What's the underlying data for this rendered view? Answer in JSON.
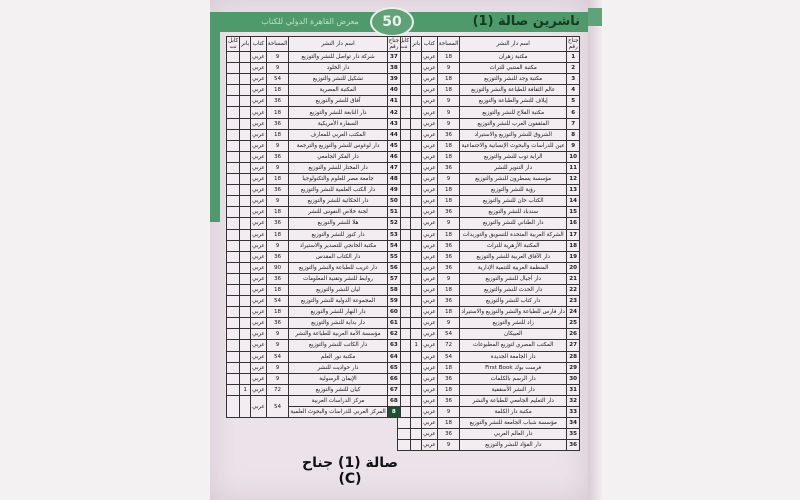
{
  "header": {
    "title": "ناشرين صالة (1)",
    "logo_text": "معرض القاهرة الدولي للكتاب",
    "logo_number": "50"
  },
  "columns": [
    "جناح رقم",
    "اسم دار النشر",
    "المساحة",
    "كتاب",
    "بانر",
    "كابل نت"
  ],
  "right_table": [
    [
      "1",
      "مكتبة زهران",
      "18",
      "عربي",
      "",
      ""
    ],
    [
      "2",
      "مكتبة المتنبي للتراث",
      "9",
      "عربي",
      "",
      ""
    ],
    [
      "3",
      "مكتبة وجد للنشر والتوزيع",
      "18",
      "عربي",
      "",
      ""
    ],
    [
      "4",
      "عالم الثقافة للطباعة والنشر والتوزيع",
      "18",
      "عربي",
      "",
      ""
    ],
    [
      "5",
      "إيلاف للنشر والطباعة والتوزيع",
      "9",
      "عربي",
      "",
      ""
    ],
    [
      "6",
      "مكتبة الفلاح للنشر والتوزيع",
      "9",
      "عربي",
      "",
      ""
    ],
    [
      "7",
      "المثقفون العرب للنشر والتوزيع",
      "9",
      "عربي",
      "",
      ""
    ],
    [
      "8",
      "الشروق للنشر والتوزيع والاستيراد",
      "36",
      "عربي",
      "",
      ""
    ],
    [
      "9",
      "عين للدراسات والبحوث الإنسانية والاجتماعية",
      "18",
      "عربي",
      "",
      ""
    ],
    [
      "10",
      "الراية توب للنشر والتوزيع",
      "18",
      "عربي",
      "",
      ""
    ],
    [
      "11",
      "دار التنوير للنشر",
      "36",
      "عربي",
      "",
      ""
    ],
    [
      "12",
      "مؤسسة يسطرون للنشر والتوزيع",
      "9",
      "عربي",
      "",
      ""
    ],
    [
      "13",
      "رؤية للنشر والتوزيع",
      "18",
      "عربي",
      "",
      ""
    ],
    [
      "14",
      "الكتاب خان للنشر والتوزيع",
      "18",
      "عربي",
      "",
      ""
    ],
    [
      "15",
      "سندباد للنشر والتوزيع",
      "36",
      "عربي",
      "",
      ""
    ],
    [
      "16",
      "دار الطناني للنشر والتوزيع",
      "9",
      "عربي",
      "",
      ""
    ],
    [
      "17",
      "الشركة العربية المتحدة للتسويق والتوريدات",
      "18",
      "عربي",
      "",
      ""
    ],
    [
      "18",
      "المكتبة الأزهرية للتراث",
      "36",
      "عربي",
      "",
      ""
    ],
    [
      "19",
      "دار الآفاق العربية للنشر والتوزيع",
      "36",
      "عربي",
      "",
      ""
    ],
    [
      "20",
      "المنظمة العربية للتنمية الإدارية",
      "36",
      "عربي",
      "",
      ""
    ],
    [
      "21",
      "دار أجيال للنشر والتوزيع",
      "9",
      "عربي",
      "",
      ""
    ],
    [
      "22",
      "دار الحدث للنشر والتوزيع",
      "18",
      "عربي",
      "",
      ""
    ],
    [
      "23",
      "دار كتاب للنشر والتوزيع",
      "36",
      "عربي",
      "",
      ""
    ],
    [
      "24",
      "دار فارس للطباعة والنشر والتوزيع والاستيراد",
      "18",
      "عربي",
      "",
      ""
    ],
    [
      "25",
      "زاد للنشر والتوزيع",
      "9",
      "عربي",
      "",
      ""
    ],
    [
      "26",
      "العبيكان",
      "54",
      "عربي",
      "",
      ""
    ],
    [
      "27",
      "المكتب المصري لتوزيع المطبوعات",
      "72",
      "عربي",
      "1",
      ""
    ],
    [
      "28",
      "دار الجامعة الجديدة",
      "54",
      "عربي",
      "",
      ""
    ],
    [
      "29",
      "فرست بوك First Book",
      "18",
      "عربي",
      "",
      ""
    ],
    [
      "30",
      "دار الرسم بالكلمات",
      "36",
      "عربي",
      "",
      ""
    ],
    [
      "31",
      "دار النشر الأسقفية",
      "18",
      "عربي",
      "",
      ""
    ],
    [
      "32",
      "دار التعليم الجامعي للطباعة والنشر",
      "36",
      "عربي",
      "",
      ""
    ],
    [
      "33",
      "مكتبة دار الكلمة",
      "9",
      "عربي",
      "",
      ""
    ],
    [
      "34",
      "مؤسسة شباب الجامعة للنشر والتوزيع",
      "18",
      "عربي",
      "",
      ""
    ],
    [
      "35",
      "دار العالم العربي",
      "36",
      "عربي",
      "",
      ""
    ],
    [
      "36",
      "دار الفؤاد للنشر والتوزيع",
      "9",
      "عربي",
      "",
      ""
    ]
  ],
  "left_table": [
    [
      "37",
      "شركة دار تواصل للنشر والتوزيع",
      "9",
      "عربي",
      "",
      ""
    ],
    [
      "38",
      "دار الخلود",
      "9",
      "عربي",
      "",
      ""
    ],
    [
      "39",
      "تشكيل للنشر والتوزيع",
      "54",
      "عربي",
      "",
      ""
    ],
    [
      "40",
      "المكتبة المصرية",
      "18",
      "عربي",
      "",
      ""
    ],
    [
      "41",
      "آفاق للنشر والتوزيع",
      "36",
      "عربي",
      "",
      ""
    ],
    [
      "42",
      "دار النابغة للنشر والتوزيع",
      "18",
      "عربي",
      "",
      ""
    ],
    [
      "43",
      "السفارة الأمريكية",
      "36",
      "عربي",
      "",
      ""
    ],
    [
      "44",
      "المكتب العربي للمعارف",
      "18",
      "عربي",
      "",
      ""
    ],
    [
      "45",
      "دار لوغوس للنشر والتوزيع والترجمة",
      "9",
      "عربي",
      "",
      ""
    ],
    [
      "46",
      "دار الفكر الجامعي",
      "36",
      "عربي",
      "",
      ""
    ],
    [
      "47",
      "دار المختار للنشر والتوزيع",
      "9",
      "عربي",
      "",
      ""
    ],
    [
      "48",
      "جامعة مصر للعلوم والتكنولوجيا",
      "18",
      "عربي",
      "",
      ""
    ],
    [
      "49",
      "دار الكتب العلمية للنشر والتوزيع",
      "36",
      "عربي",
      "",
      ""
    ],
    [
      "50",
      "دار الحكائية للنشر والتوزيع",
      "9",
      "عربي",
      "",
      ""
    ],
    [
      "51",
      "لجنة خلاص النفوس للنشر",
      "18",
      "عربي",
      "",
      ""
    ],
    [
      "52",
      "هلا للنشر والتوزيع",
      "36",
      "عربي",
      "",
      ""
    ],
    [
      "53",
      "دار كنوز للنشر والتوزيع",
      "18",
      "عربي",
      "",
      ""
    ],
    [
      "54",
      "مكتبة الخانجي للتصدير والاستيراد",
      "9",
      "عربي",
      "",
      ""
    ],
    [
      "55",
      "دار الكتاب المقدس",
      "36",
      "عربي",
      "",
      ""
    ],
    [
      "56",
      "دار غريب للطباعة والنشر والتوزيع",
      "90",
      "عربي",
      "",
      ""
    ],
    [
      "57",
      "روابط للنشر وتقنية المعلومات",
      "36",
      "عربي",
      "",
      ""
    ],
    [
      "58",
      "ليان للنشر والتوزيع",
      "18",
      "عربي",
      "",
      ""
    ],
    [
      "59",
      "المجموعة الدولية للنشر والتوزيع",
      "54",
      "عربي",
      "",
      ""
    ],
    [
      "60",
      "دار النهار للنشر والتوزيع",
      "18",
      "عربي",
      "",
      ""
    ],
    [
      "61",
      "دار بداية للنشر والتوزيع",
      "36",
      "عربي",
      "",
      ""
    ],
    [
      "62",
      "مؤسسة الأمة العربية للطباعة والنشر",
      "9",
      "عربي",
      "",
      ""
    ],
    [
      "63",
      "دار الكاتب للنشر والتوزيع",
      "9",
      "عربي",
      "",
      ""
    ],
    [
      "64",
      "مكتبة نور العلم",
      "54",
      "عربي",
      "",
      ""
    ],
    [
      "65",
      "دار حواديت للنشر",
      "9",
      "عربي",
      "",
      ""
    ],
    [
      "66",
      "الإيمان الرسولية",
      "9",
      "عربي",
      "",
      ""
    ],
    [
      "67",
      "كيان للنشر والتوزيع",
      "72",
      "عربي",
      "1",
      ""
    ]
  ],
  "merged_rows": {
    "rows": [
      [
        "68",
        "مركز الدراسات العربية"
      ],
      [
        "8",
        "المركز العربي للدراسات والبحوث العلمية"
      ]
    ],
    "area": "54",
    "book": "عربي"
  },
  "caption": "صالة (1) جناح (C)",
  "colors": {
    "band": "#4f9a6a",
    "paper": "#ece3ea",
    "highlight": "#1f4f33"
  }
}
